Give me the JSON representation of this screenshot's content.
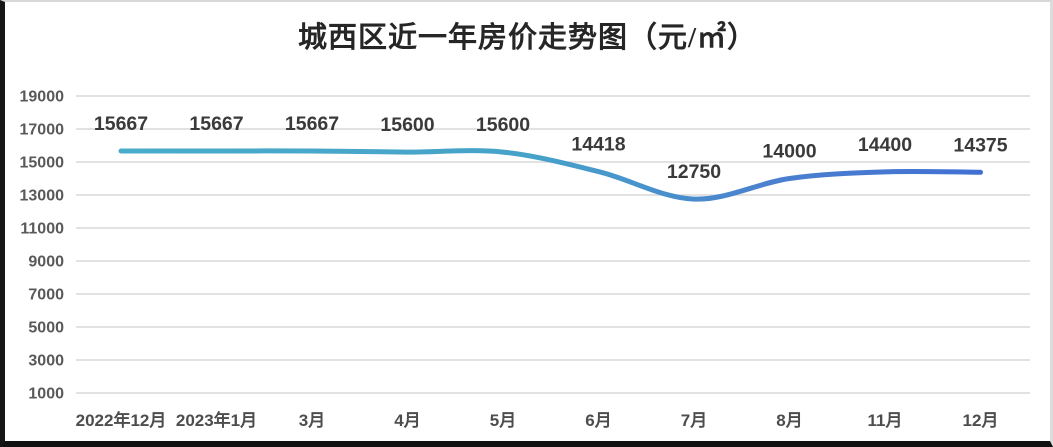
{
  "chart_data": {
    "type": "line",
    "title": "城西区近一年房价走势图（元/㎡）",
    "categories": [
      "2022年12月",
      "2023年1月",
      "3月",
      "4月",
      "5月",
      "6月",
      "7月",
      "8月",
      "11月",
      "12月"
    ],
    "values": [
      15667,
      15667,
      15667,
      15600,
      15600,
      14418,
      12750,
      14000,
      14400,
      14375
    ],
    "data_labels": [
      "15667",
      "15667",
      "15667",
      "15600",
      "15600",
      "14418",
      "12750",
      "14000",
      "14400",
      "14375"
    ],
    "y_ticks": [
      19000,
      17000,
      15000,
      13000,
      11000,
      9000,
      7000,
      5000,
      3000,
      1000
    ],
    "ylim": [
      1000,
      19000
    ],
    "xlabel": "",
    "ylabel": "",
    "legend": "none",
    "grid": "horizontal",
    "smooth": true,
    "line_gradient": [
      "#48ACCA",
      "#46A2C9",
      "#4B80CF",
      "#4170D4"
    ],
    "colors": {
      "grid": "#d9d9d9",
      "y_tick_label": "#595959",
      "x_tick_label": "#4d4d4d",
      "data_label": "#3a3a3a",
      "title": "#262626"
    }
  }
}
